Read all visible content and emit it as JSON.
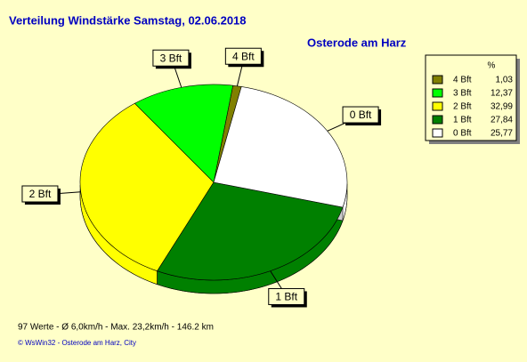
{
  "chart_data": {
    "type": "pie",
    "title": "Verteilung Windstärke  Samstag, 02.06.2018",
    "subtitle": "Osterode am Harz",
    "legend_header": "%",
    "categories": [
      "4 Bft",
      "3 Bft",
      "2 Bft",
      "1 Bft",
      "0 Bft"
    ],
    "values": [
      1.03,
      12.37,
      32.99,
      27.84,
      25.77
    ],
    "value_labels": [
      "1,03",
      "12,37",
      "32,99",
      "27,84",
      "25,77"
    ],
    "colors": [
      "#808000",
      "#00ff00",
      "#ffff00",
      "#008000",
      "#ffffff"
    ],
    "footer": "97 Werte   -   Ø 6,0km/h  -  Max. 23,2km/h   -   146.2 km",
    "credit": "© WsWin32  -  Osterode am Harz, City"
  }
}
